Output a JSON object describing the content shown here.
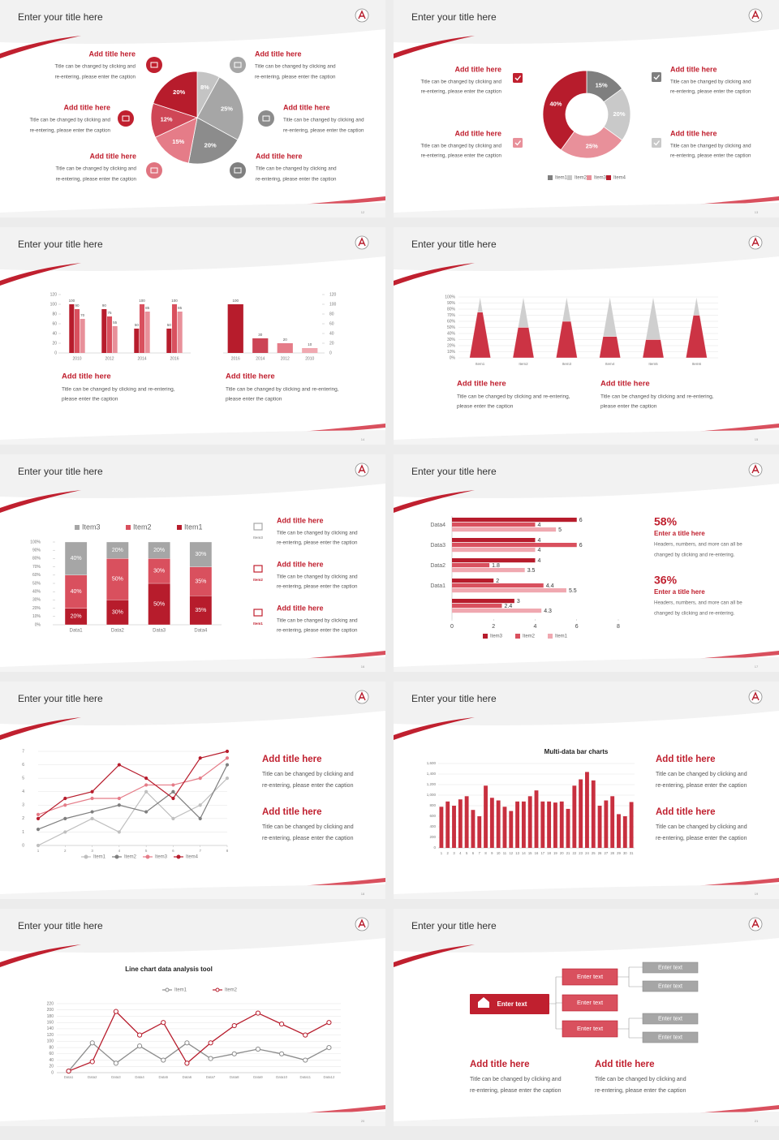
{
  "slides": [
    {
      "title": "Enter your title here",
      "page": "12",
      "chart_data": {
        "type": "pie",
        "values": [
          8,
          25,
          20,
          15,
          12,
          20
        ],
        "value_labels": [
          "8%",
          "25%",
          "20%",
          "15%",
          "12%",
          "20%"
        ],
        "colors": [
          "#c4c4c4",
          "#a6a6a6",
          "#8c8c8c",
          "#e57c88",
          "#cf4656",
          "#b71c2c"
        ]
      },
      "blocks": [
        {
          "heading": "Add title here",
          "caption": [
            "Title can be changed by clicking and",
            "re-entering, please enter the caption"
          ]
        },
        {
          "heading": "Add title here",
          "caption": [
            "Title can be changed by clicking and",
            "re-entering, please enter the caption"
          ]
        },
        {
          "heading": "Add title here",
          "caption": [
            "Title can be changed by clicking and",
            "re-entering, please enter the caption"
          ]
        },
        {
          "heading": "Add title here",
          "caption": [
            "Title can be changed by clicking and",
            "re-entering, please enter the caption"
          ]
        },
        {
          "heading": "Add title here",
          "caption": [
            "Title can be changed by clicking and",
            "re-entering, please enter the caption"
          ]
        },
        {
          "heading": "Add title here",
          "caption": [
            "Title can be changed by clicking and",
            "re-entering, please enter the caption"
          ]
        }
      ]
    },
    {
      "title": "Enter your title here",
      "page": "13",
      "chart_data": {
        "type": "doughnut",
        "categories": [
          "Item1",
          "Item2",
          "Item3",
          "Item4"
        ],
        "values": [
          15,
          20,
          25,
          40
        ],
        "value_labels": [
          "15%",
          "20%",
          "25%",
          "40%"
        ],
        "colors": [
          "#7f7f7f",
          "#c9c9c9",
          "#e8909a",
          "#b71c2c"
        ]
      },
      "blocks": [
        {
          "heading": "Add title here",
          "caption": [
            "Title can be changed by clicking and",
            "re-entering, please enter the caption"
          ]
        },
        {
          "heading": "Add title here",
          "caption": [
            "Title can be changed by clicking and",
            "re-entering, please enter the caption"
          ]
        },
        {
          "heading": "Add title here",
          "caption": [
            "Title can be changed by clicking and",
            "re-entering, please enter the caption"
          ]
        },
        {
          "heading": "Add title here",
          "caption": [
            "Title can be changed by clicking and",
            "re-entering, please enter the caption"
          ]
        }
      ]
    },
    {
      "title": "Enter your title here",
      "page": "14",
      "chart_data": [
        {
          "type": "bar",
          "categories": [
            "2010",
            "2012",
            "2014",
            "2016"
          ],
          "series": [
            {
              "color": "#b71c2c",
              "values": [
                100,
                90,
                50,
                50
              ]
            },
            {
              "color": "#d9505e",
              "values": [
                90,
                75,
                100,
                100
              ]
            },
            {
              "color": "#e8909a",
              "values": [
                70,
                55,
                85,
                85
              ]
            }
          ],
          "ylim": [
            0,
            120
          ],
          "yticks": [
            0,
            20,
            40,
            60,
            80,
            100,
            120
          ]
        },
        {
          "type": "bar",
          "categories": [
            "2016",
            "2014",
            "2012",
            "2010"
          ],
          "values": [
            100,
            30,
            20,
            10
          ],
          "colors": [
            "#b71c2c",
            "#cc4455",
            "#e57c88",
            "#f0a8b0"
          ],
          "ylim": [
            0,
            120
          ],
          "yticks": [
            0,
            20,
            40,
            60,
            80,
            100,
            120
          ],
          "y_axis_side": "right"
        }
      ],
      "blocks": [
        {
          "heading": "Add title here",
          "caption": [
            "Title can be changed by clicking and re-entering,",
            "please enter the caption"
          ]
        },
        {
          "heading": "Add title here",
          "caption": [
            "Title can be changed by clicking and re-entering,",
            "please enter the caption"
          ]
        }
      ]
    },
    {
      "title": "Enter your title here",
      "page": "15",
      "chart_data": {
        "type": "cone",
        "categories": [
          "Item1",
          "Item2",
          "Item3",
          "Item4",
          "Item5",
          "Item6"
        ],
        "series": [
          {
            "color": "#cc3344",
            "values": [
              75,
              50,
              60,
              35,
              30,
              70
            ]
          },
          {
            "color": "#cfcfcf",
            "values": [
              25,
              50,
              40,
              65,
              70,
              30
            ]
          }
        ],
        "ylim": [
          0,
          100
        ],
        "yticks": [
          {
            "value": 0,
            "label": "0%"
          },
          {
            "value": 10,
            "label": "10%"
          },
          {
            "value": 20,
            "label": "20%"
          },
          {
            "value": 30,
            "label": "30%"
          },
          {
            "value": 40,
            "label": "40%"
          },
          {
            "value": 50,
            "label": "50%"
          },
          {
            "value": 60,
            "label": "60%"
          },
          {
            "value": 70,
            "label": "70%"
          },
          {
            "value": 80,
            "label": "80%"
          },
          {
            "value": 90,
            "label": "90%"
          },
          {
            "value": 100,
            "label": "100%"
          }
        ],
        "grid": true
      },
      "blocks": [
        {
          "heading": "Add title here",
          "caption": [
            "Title can be changed by clicking and re-entering,",
            "please enter the caption"
          ]
        },
        {
          "heading": "Add title here",
          "caption": [
            "Title can be changed by clicking and re-entering,",
            "please enter the caption"
          ]
        }
      ]
    },
    {
      "title": "Enter your title here",
      "page": "16",
      "chart_data": {
        "type": "stacked-bar",
        "categories": [
          "Data1",
          "Data2",
          "Data3",
          "Data4"
        ],
        "series": [
          {
            "name": "Item3",
            "color": "#a6a6a6",
            "values": [
              40,
              20,
              20,
              30
            ],
            "value_labels": [
              "40%",
              "20%",
              "20%",
              "30%"
            ]
          },
          {
            "name": "Item2",
            "color": "#d9505e",
            "values": [
              40,
              50,
              30,
              35
            ],
            "value_labels": [
              "40%",
              "50%",
              "30%",
              "35%"
            ]
          },
          {
            "name": "Item1",
            "color": "#b71c2c",
            "values": [
              20,
              30,
              50,
              35
            ],
            "value_labels": [
              "20%",
              "30%",
              "50%",
              "35%"
            ]
          }
        ],
        "ylim": [
          0,
          100
        ],
        "yticks": [
          {
            "value": 0,
            "label": "0%"
          },
          {
            "value": 10,
            "label": "10%"
          },
          {
            "value": 20,
            "label": "20%"
          },
          {
            "value": 30,
            "label": "30%"
          },
          {
            "value": 40,
            "label": "40%"
          },
          {
            "value": 50,
            "label": "50%"
          },
          {
            "value": 60,
            "label": "60%"
          },
          {
            "value": 70,
            "label": "70%"
          },
          {
            "value": 80,
            "label": "80%"
          },
          {
            "value": 90,
            "label": "90%"
          },
          {
            "value": 100,
            "label": "100%"
          }
        ]
      },
      "icon_labels": [
        "Item3",
        "Item2",
        "Item1"
      ],
      "blocks": [
        {
          "heading": "Add title here",
          "caption": [
            "Title can be changed by clicking and",
            "re-entering, please enter the caption"
          ]
        },
        {
          "heading": "Add title here",
          "caption": [
            "Title can be changed by clicking and",
            "re-entering, please enter the caption"
          ]
        },
        {
          "heading": "Add title here",
          "caption": [
            "Title can be changed by clicking and",
            "re-entering, please enter the caption"
          ]
        }
      ]
    },
    {
      "title": "Enter your title here",
      "page": "17",
      "chart_data": {
        "type": "barh",
        "categories": [
          "Data4",
          "Data3",
          "Data2",
          "Data1",
          null
        ],
        "series": [
          {
            "name": "Item3",
            "color": "#b71c2c",
            "values": [
              6,
              4,
              4,
              2,
              3
            ]
          },
          {
            "name": "Item2",
            "color": "#d9505e",
            "values": [
              4,
              6,
              1.8,
              4.4,
              2.4
            ]
          },
          {
            "name": "Item1",
            "color": "#f0a8b0",
            "values": [
              5,
              4,
              3.5,
              5.5,
              4.3
            ]
          }
        ],
        "xlim": [
          0,
          8
        ],
        "xticks": [
          0,
          2,
          4,
          6,
          8
        ]
      },
      "stats": [
        {
          "value": "58%",
          "heading": "Enter a title here",
          "caption": [
            "Headers, numbers, and more can all be",
            "changed by clicking and re-entering."
          ]
        },
        {
          "value": "36%",
          "heading": "Enter a title here",
          "caption": [
            "Headers, numbers, and more can all be",
            "changed by clicking and re-entering."
          ]
        }
      ]
    },
    {
      "title": "Enter your title here",
      "page": "18",
      "chart_data": {
        "type": "line",
        "x": [
          1,
          2,
          3,
          4,
          5,
          6,
          7,
          8
        ],
        "xlim": [
          1,
          8
        ],
        "xticks": [
          1,
          2,
          3,
          4,
          5,
          6,
          7,
          8
        ],
        "ylim": [
          0,
          7
        ],
        "yticks": [
          0,
          1,
          2,
          3,
          4,
          5,
          6,
          7
        ],
        "grid": true,
        "marker": "dot",
        "series": [
          {
            "name": "Item1",
            "color": "#bfbfbf",
            "values": [
              0,
              1,
              2,
              1,
              4,
              2,
              3,
              5
            ]
          },
          {
            "name": "Item2",
            "color": "#7f7f7f",
            "values": [
              1.2,
              2,
              2.5,
              3,
              2.5,
              4,
              2,
              6
            ]
          },
          {
            "name": "Item3",
            "color": "#e57c88",
            "values": [
              2.3,
              3,
              3.5,
              3.5,
              4.5,
              4.5,
              5,
              6.5
            ]
          },
          {
            "name": "Item4",
            "color": "#b71c2c",
            "values": [
              2,
              3.5,
              4,
              6,
              5,
              3.5,
              6.5,
              7
            ]
          }
        ]
      },
      "blocks": [
        {
          "heading": "Add title here",
          "caption": [
            "Title can be changed by clicking and",
            "re-entering, please enter the caption"
          ]
        },
        {
          "heading": "Add title here",
          "caption": [
            "Title can be changed by clicking and",
            "re-entering, please enter the caption"
          ]
        }
      ]
    },
    {
      "title": "Enter your title here",
      "page": "19",
      "chart_data": {
        "type": "bar",
        "title": "Multi-data bar charts",
        "categories": [
          "1",
          "2",
          "3",
          "4",
          "5",
          "6",
          "7",
          "8",
          "9",
          "10",
          "11",
          "12",
          "13",
          "14",
          "15",
          "16",
          "17",
          "18",
          "19",
          "20",
          "21",
          "22",
          "23",
          "24",
          "25",
          "26",
          "27",
          "28",
          "29",
          "30",
          "31"
        ],
        "values": [
          780,
          880,
          800,
          920,
          980,
          720,
          600,
          1180,
          950,
          900,
          780,
          700,
          880,
          880,
          980,
          1090,
          880,
          880,
          860,
          880,
          740,
          1180,
          1300,
          1440,
          1280,
          800,
          900,
          980,
          640,
          600,
          870
        ],
        "color": "#c8303f",
        "ylim": [
          0,
          1600
        ],
        "yticks": [
          0,
          200,
          400,
          600,
          800,
          {
            "value": 1000,
            "label": "1,000"
          },
          {
            "value": 1200,
            "label": "1,200"
          },
          {
            "value": 1400,
            "label": "1,400"
          },
          {
            "value": 1600,
            "label": "1,600"
          }
        ],
        "grid": true
      },
      "blocks": [
        {
          "heading": "Add title here",
          "caption": [
            "Title can be changed by clicking and",
            "re-entering, please enter the caption"
          ]
        },
        {
          "heading": "Add title here",
          "caption": [
            "Title can be changed by clicking and",
            "re-entering, please enter the caption"
          ]
        }
      ]
    },
    {
      "title": "Enter your title here",
      "page": "20",
      "chart_data": {
        "type": "line",
        "title": "Line chart data analysis tool",
        "categories": [
          "Data1",
          "Data2",
          "Data3",
          "Data4",
          "Data5",
          "Data6",
          "Data7",
          "Data8",
          "Data9",
          "Data10",
          "Data11",
          "Data12"
        ],
        "ylim": [
          0,
          220
        ],
        "yticks": [
          0,
          20,
          40,
          60,
          80,
          100,
          120,
          140,
          160,
          180,
          200,
          220
        ],
        "grid": true,
        "marker": "hollow-circle",
        "series": [
          {
            "name": "Item1",
            "color": "#8c8c8c",
            "values": [
              5,
              95,
              30,
              85,
              40,
              95,
              45,
              60,
              75,
              60,
              40,
              80
            ]
          },
          {
            "name": "Item2",
            "color": "#b71c2c",
            "values": [
              5,
              35,
              195,
              120,
              160,
              30,
              95,
              150,
              190,
              155,
              120,
              160
            ]
          }
        ]
      }
    },
    {
      "title": "Enter your title here",
      "page": "21",
      "diagram": {
        "root": "Enter text",
        "branches": [
          "Enter text",
          "Enter text",
          "Enter text"
        ],
        "leaves": [
          "Enter text",
          "Enter text",
          "Enter text",
          "Enter text"
        ]
      },
      "blocks": [
        {
          "heading": "Add title here",
          "caption": [
            "Title can be changed by clicking and",
            "re-entering, please enter the caption"
          ]
        },
        {
          "heading": "Add title here",
          "caption": [
            "Title can be changed by clicking and",
            "re-entering, please enter the caption"
          ]
        }
      ]
    }
  ]
}
